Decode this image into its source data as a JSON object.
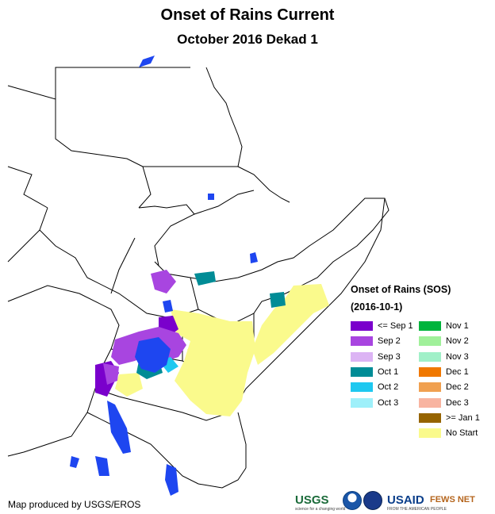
{
  "title": "Onset of Rains Current",
  "subtitle": "October 2016 Dekad 1",
  "legend": {
    "title": "Onset of Rains (SOS)",
    "date": "(2016-10-1)",
    "items": [
      {
        "label": "<= Sep 1",
        "color": "#7a00cc"
      },
      {
        "label": "Sep 2",
        "color": "#a845e0"
      },
      {
        "label": "Sep 3",
        "color": "#dcb4f4"
      },
      {
        "label": "Oct 1",
        "color": "#008c96"
      },
      {
        "label": "Oct 2",
        "color": "#1ec8f0"
      },
      {
        "label": "Oct 3",
        "color": "#9ef0fa"
      },
      {
        "label": "Nov 1",
        "color": "#00b43c"
      },
      {
        "label": "Nov 2",
        "color": "#a0f09a"
      },
      {
        "label": "Nov 3",
        "color": "#a0f0c8"
      },
      {
        "label": "Dec 1",
        "color": "#f07800"
      },
      {
        "label": "Dec 2",
        "color": "#f0a050"
      },
      {
        "label": "Dec 3",
        "color": "#f8b4a0"
      },
      {
        "label": ">= Jan 1",
        "color": "#966400"
      },
      {
        "label": "No Start",
        "color": "#fafa8c"
      }
    ]
  },
  "credit": "Map produced by USGS/EROS",
  "logos": {
    "usgs": "USGS",
    "usgs_tag": "science for a changing world",
    "usaid": "USAID",
    "usaid_tag": "FROM THE AMERICAN PEOPLE",
    "fews": "FEWS NET",
    "noaa_icon": "noaa-logo-icon",
    "nasa_icon": "nasa-logo-icon"
  },
  "map_colors": {
    "lake": "#1e46f0",
    "border": "#000000",
    "land": "#ffffff"
  }
}
